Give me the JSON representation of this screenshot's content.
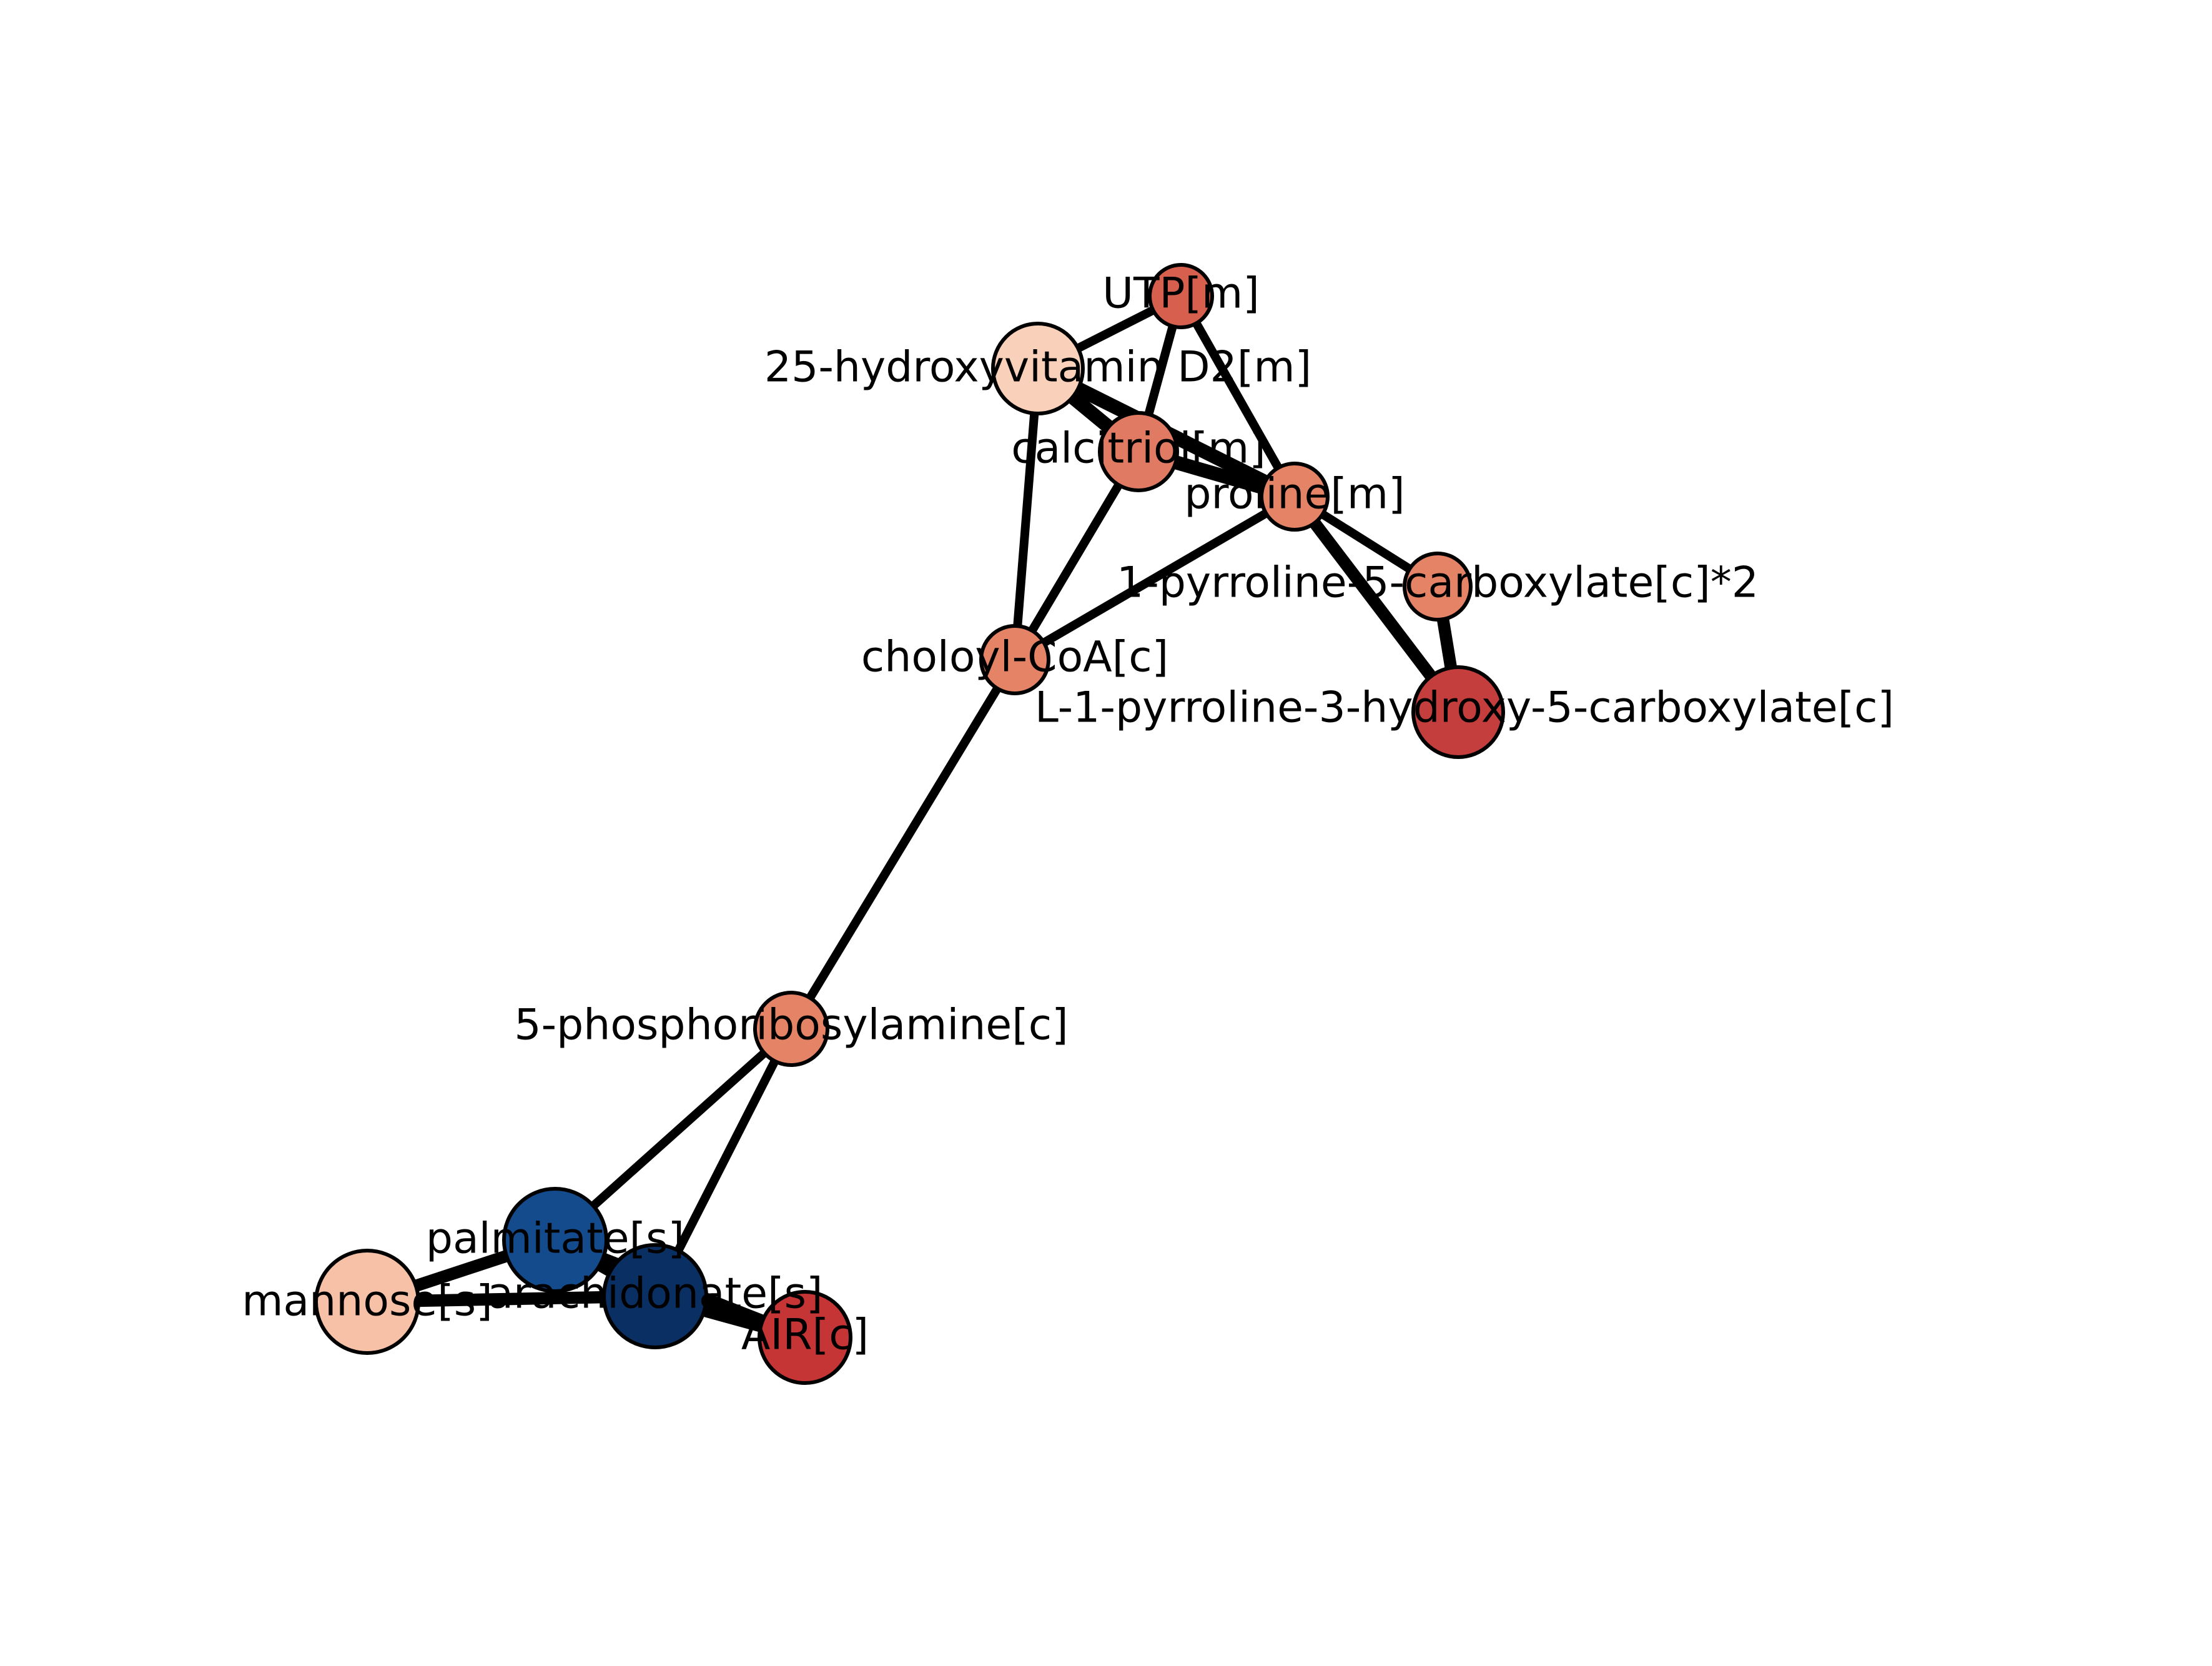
{
  "graph": {
    "nodes": [
      {
        "id": "utp",
        "label": "UTP[m]",
        "color": "#d6604d"
      },
      {
        "id": "vitd2",
        "label": "25-hydroxyvitamin D2[m]",
        "color": "#f9d0b9"
      },
      {
        "id": "calcitriol",
        "label": "calcitriol[m]",
        "color": "#e07a62"
      },
      {
        "id": "proline",
        "label": "proline[m]",
        "color": "#e58366"
      },
      {
        "id": "p5c",
        "label": "1-pyrroline-5-carboxylate[c]*2",
        "color": "#e58366"
      },
      {
        "id": "cholcoa",
        "label": "choloyl-CoA[c]",
        "color": "#e58366"
      },
      {
        "id": "hp5c",
        "label": "L-1-pyrroline-3-hydroxy-5-carboxylate[c]",
        "color": "#c53e3e"
      },
      {
        "id": "pra",
        "label": "5-phosphoribosylamine[c]",
        "color": "#e58366"
      },
      {
        "id": "palmitate",
        "label": "palmitate[s]",
        "color": "#134b8c"
      },
      {
        "id": "mannose",
        "label": "mannose[s]",
        "color": "#f6c1a6"
      },
      {
        "id": "arach",
        "label": "arachidonate[s]",
        "color": "#0a2f63"
      },
      {
        "id": "air",
        "label": "AIR[c]",
        "color": "#c53535"
      }
    ],
    "edges": [
      {
        "source": "vitd2",
        "target": "utp",
        "weight": 1
      },
      {
        "source": "utp",
        "target": "calcitriol",
        "weight": 1
      },
      {
        "source": "utp",
        "target": "proline",
        "weight": 1
      },
      {
        "source": "vitd2",
        "target": "calcitriol",
        "weight": 1.6
      },
      {
        "source": "vitd2",
        "target": "proline",
        "weight": 1.6
      },
      {
        "source": "calcitriol",
        "target": "proline",
        "weight": 1.6
      },
      {
        "source": "vitd2",
        "target": "cholcoa",
        "weight": 1
      },
      {
        "source": "calcitriol",
        "target": "cholcoa",
        "weight": 1
      },
      {
        "source": "proline",
        "target": "cholcoa",
        "weight": 1
      },
      {
        "source": "proline",
        "target": "p5c",
        "weight": 1
      },
      {
        "source": "proline",
        "target": "hp5c",
        "weight": 1.4
      },
      {
        "source": "p5c",
        "target": "hp5c",
        "weight": 1.4
      },
      {
        "source": "cholcoa",
        "target": "pra",
        "weight": 1
      },
      {
        "source": "pra",
        "target": "palmitate",
        "weight": 1
      },
      {
        "source": "pra",
        "target": "arach",
        "weight": 1
      },
      {
        "source": "palmitate",
        "target": "mannose",
        "weight": 1.4
      },
      {
        "source": "palmitate",
        "target": "arach",
        "weight": 1.4
      },
      {
        "source": "mannose",
        "target": "arach",
        "weight": 1.4
      },
      {
        "source": "palmitate",
        "target": "air",
        "weight": 1.4
      },
      {
        "source": "arach",
        "target": "air",
        "weight": 1.6
      }
    ]
  }
}
